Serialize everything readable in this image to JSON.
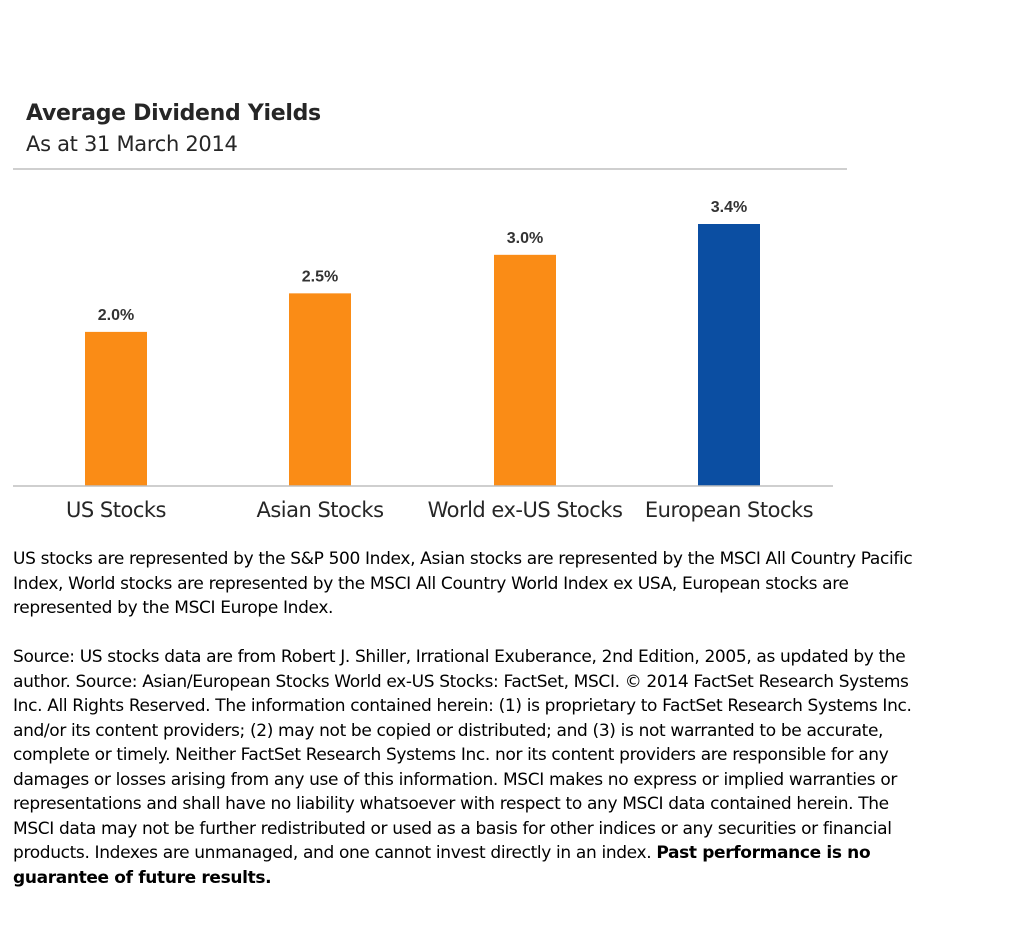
{
  "chart_data": {
    "type": "bar",
    "title": "Average Dividend Yields",
    "subtitle": "As at 31 March 2014",
    "categories": [
      "US Stocks",
      "Asian Stocks",
      "World ex-US Stocks",
      "European Stocks"
    ],
    "values": [
      2.0,
      2.5,
      3.0,
      3.4
    ],
    "data_labels": [
      "2.0%",
      "2.5%",
      "3.0%",
      "3.4%"
    ],
    "colors": [
      "#FA8C16",
      "#FA8C16",
      "#FA8C16",
      "#0B4EA2"
    ],
    "ylim": [
      0,
      3.4
    ],
    "xlabel": "",
    "ylabel": "",
    "grid": false,
    "legend": "none"
  },
  "notes": {
    "representation": "US stocks are represented by the S&P 500 Index, Asian stocks are represented by the MSCI All Country Pacific Index, World stocks are represented by the MSCI All Country World Index ex USA, European stocks are represented by the MSCI Europe Index.",
    "source": "Source: US stocks data are from Robert J. Shiller, Irrational Exuberance, 2nd Edition, 2005, as updated by the author. Source: Asian/European Stocks World ex-US Stocks: FactSet, MSCI. © 2014 FactSet Research Systems Inc. All Rights Reserved. The information contained herein: (1) is proprietary to FactSet Research Systems Inc. and/or its content providers; (2) may not be copied or distributed; and (3) is not warranted to be accurate, complete or timely. Neither FactSet Research Systems Inc. nor its content providers are responsible for any damages or losses arising from any use of this information. MSCI makes no express or implied warranties or representations and shall have no liability whatsoever with respect to any MSCI data contained herein. The MSCI data may not be further redistributed or used as a basis for other indices or any securities or financial products. Indexes are unmanaged, and one cannot invest directly in an index.",
    "disclaimer_bold": "Past performance is no guarantee of future results."
  }
}
